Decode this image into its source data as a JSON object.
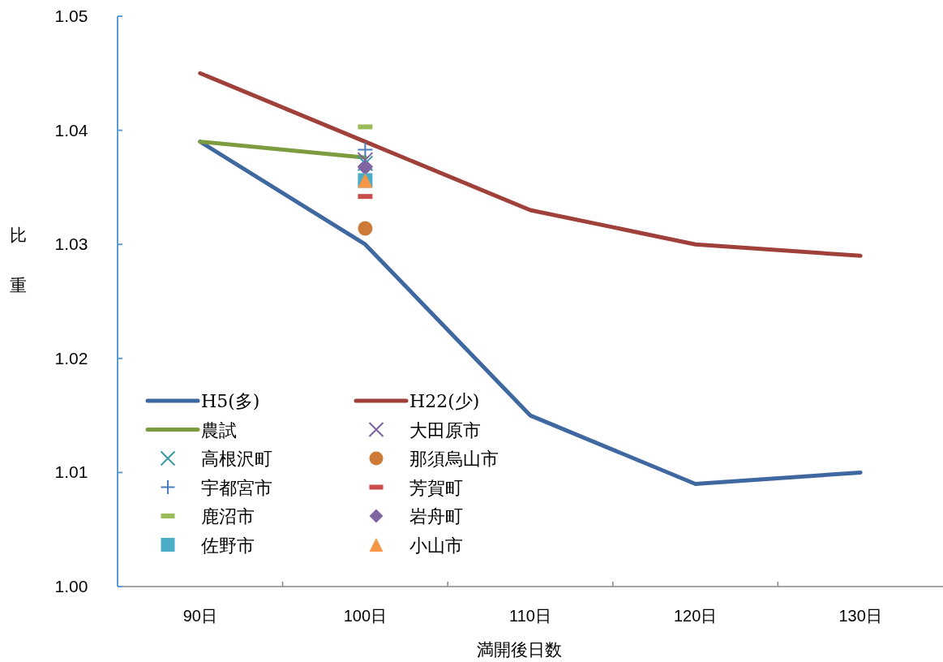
{
  "chart_data": {
    "type": "line",
    "xlabel": "満開後日数",
    "ylabel": "比重",
    "categories": [
      "90日",
      "100日",
      "110日",
      "120日",
      "130日"
    ],
    "ylim": [
      1.0,
      1.05
    ],
    "yticks": [
      {
        "value": 1.0,
        "label": "1.00"
      },
      {
        "value": 1.01,
        "label": "1.01"
      },
      {
        "value": 1.02,
        "label": "1.02"
      },
      {
        "value": 1.03,
        "label": "1.03"
      },
      {
        "value": 1.04,
        "label": "1.04"
      },
      {
        "value": 1.05,
        "label": "1.05"
      }
    ],
    "grid": false,
    "legend": "bottom left",
    "series": [
      {
        "name": "H5(多)",
        "color": "#4068a0",
        "marker": "none",
        "values": [
          1.039,
          1.03,
          1.015,
          1.009,
          1.01
        ]
      },
      {
        "name": "H22(少)",
        "color": "#a0403a",
        "marker": "none",
        "values": [
          1.045,
          1.039,
          1.033,
          1.03,
          1.029
        ]
      },
      {
        "name": "農試",
        "color": "#7d9c3f",
        "marker": "none",
        "values": [
          1.039,
          1.0376,
          null,
          null,
          null
        ]
      },
      {
        "name": "大田原市",
        "type": "scatter",
        "color": "#7b5fa0",
        "marker": "cross",
        "x": [
          "100日"
        ],
        "values": [
          1.0374
        ]
      },
      {
        "name": "高根沢町",
        "type": "scatter",
        "color": "#3c9aa8",
        "marker": "cross",
        "x": [
          "100日"
        ],
        "values": [
          1.0371
        ]
      },
      {
        "name": "那須烏山市",
        "type": "scatter",
        "color": "#cc7a35",
        "marker": "circle",
        "x": [
          "100日"
        ],
        "values": [
          1.0314
        ]
      },
      {
        "name": "宇都宮市",
        "type": "scatter",
        "color": "#4a7cc0",
        "marker": "plus",
        "x": [
          "100日"
        ],
        "values": [
          1.0383
        ]
      },
      {
        "name": "芳賀町",
        "type": "scatter",
        "color": "#cc4b4b",
        "x": [
          "100日"
        ],
        "values": [
          1.0342
        ]
      },
      {
        "name": "鹿沼市",
        "type": "scatter",
        "color": "#9bbb59",
        "x": [
          "100日"
        ],
        "values": [
          1.0403
        ]
      },
      {
        "name": "岩舟町",
        "type": "scatter",
        "color": "#8064a2",
        "marker": "diamond",
        "x": [
          "100日"
        ],
        "values": [
          1.0367
        ]
      },
      {
        "name": "佐野市",
        "type": "scatter",
        "color": "#4bacc6",
        "marker": "square",
        "x": [
          "100日"
        ],
        "values": [
          1.0356
        ]
      },
      {
        "name": "小山市",
        "type": "scatter",
        "color": "#f79646",
        "marker": "triangle",
        "x": [
          "100日"
        ],
        "values": [
          1.0356
        ]
      }
    ]
  }
}
